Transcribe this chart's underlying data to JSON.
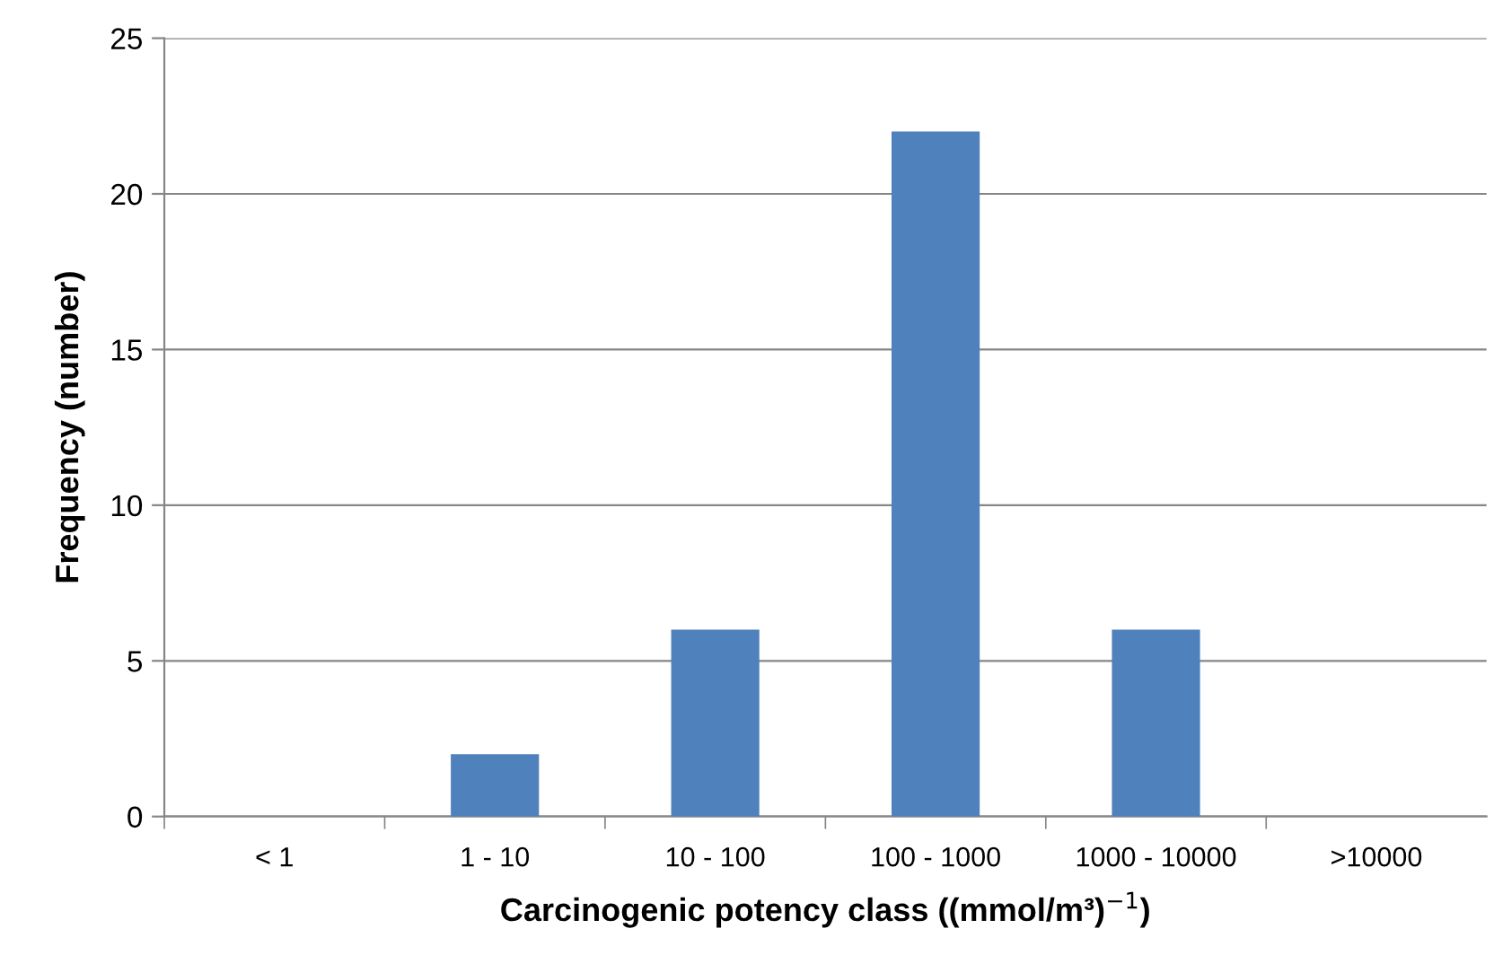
{
  "chart_data": {
    "type": "bar",
    "xlabel": "Carcinogenic potency class ((mmol/m³)$^{−1}$)",
    "ylabel": "Frequency (number)",
    "categories": [
      "< 1",
      "1 - 10",
      "10 - 100",
      "100 - 1000",
      "1000 - 10000",
      ">10000"
    ],
    "values": [
      0,
      2,
      6,
      22,
      6,
      0
    ],
    "color": "#4f81bd",
    "ylim": [
      0,
      25
    ],
    "yticks": [
      0,
      5,
      10,
      15,
      20,
      25
    ],
    "grid": "y",
    "legend": false
  }
}
